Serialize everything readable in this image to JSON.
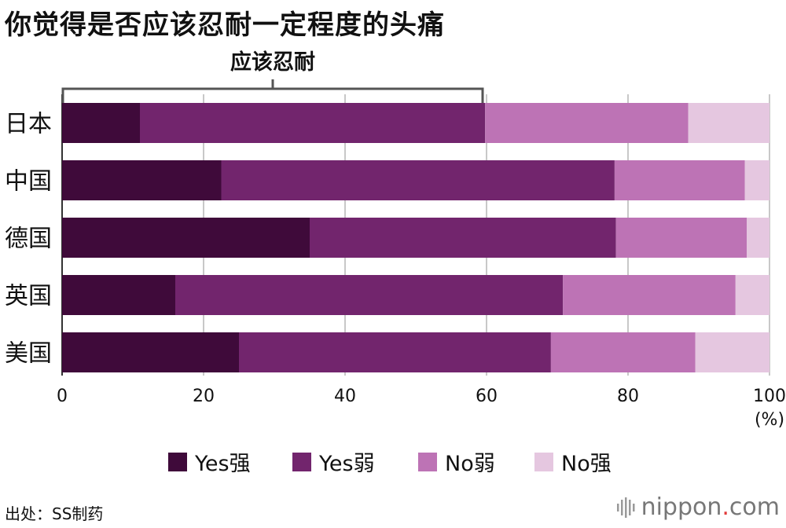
{
  "title": "你觉得是否应该忍耐一定程度的头痛",
  "chart_data": {
    "type": "bar",
    "orientation": "horizontal",
    "stacked": true,
    "categories": [
      "日本",
      "中国",
      "德国",
      "英国",
      "美国"
    ],
    "series": [
      {
        "name": "Yes强",
        "color": "#3f0a3a",
        "values": [
          11,
          22.5,
          35,
          16,
          25
        ]
      },
      {
        "name": "Yes弱",
        "color": "#72256d",
        "values": [
          48.8,
          55.6,
          43.3,
          54.8,
          44.1
        ]
      },
      {
        "name": "No弱",
        "color": "#bd73b5",
        "values": [
          28.7,
          18.4,
          18.5,
          24.4,
          20.4
        ]
      },
      {
        "name": "No强",
        "color": "#e5c7e0",
        "values": [
          11.5,
          3.5,
          3.2,
          4.8,
          10.5
        ]
      }
    ],
    "xlim": [
      0,
      100
    ],
    "xticks": [
      0,
      20,
      40,
      60,
      80,
      100
    ],
    "xunit": "(%)",
    "grid": true,
    "bracket": {
      "label": "应该忍耐",
      "from": 0,
      "to": 60
    },
    "legend_position": "bottom"
  },
  "source": "出处：SS制药",
  "brand": {
    "name": "nippon",
    "dot": ".",
    "tld": "com"
  }
}
